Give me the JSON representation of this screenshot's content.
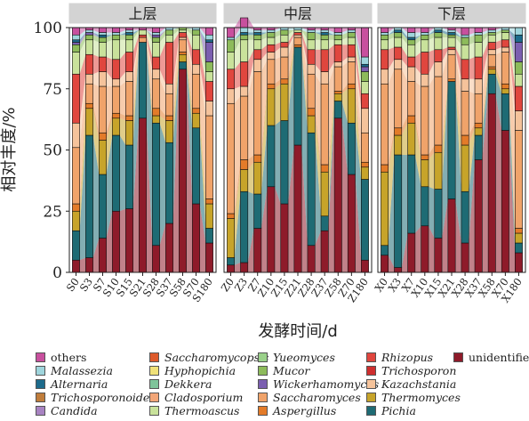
{
  "chart_data": {
    "type": "area",
    "ylabel": "相对丰度/%",
    "xlabel": "发酵时间/d",
    "ylim": [
      0,
      100
    ],
    "yticks": [
      0,
      25,
      50,
      75,
      100
    ],
    "panels": [
      {
        "title": "上层",
        "categories": [
          "S0",
          "S3",
          "S7",
          "S10",
          "S15",
          "S21",
          "S28",
          "S37",
          "S58",
          "S70",
          "S180"
        ]
      },
      {
        "title": "中层",
        "categories": [
          "Z0",
          "Z3",
          "Z7",
          "Z10",
          "Z15",
          "Z21",
          "Z28",
          "Z37",
          "Z58",
          "Z70",
          "Z180"
        ]
      },
      {
        "title": "下层",
        "categories": [
          "X0",
          "X3",
          "X7",
          "X10",
          "X15",
          "X21",
          "X28",
          "X37",
          "X58",
          "X70",
          "X180"
        ]
      }
    ],
    "series": [
      {
        "name": "unidentified",
        "color": "#8e1b2a",
        "values": [
          [
            5,
            6,
            14,
            25,
            26,
            63,
            11,
            20,
            83,
            28,
            12
          ],
          [
            3,
            4,
            18,
            35,
            28,
            52,
            11,
            17,
            63,
            40,
            5
          ],
          [
            7,
            2,
            16,
            19,
            14,
            30,
            12,
            46,
            73,
            58,
            8
          ]
        ]
      },
      {
        "name": "Pichia",
        "color": "#1e6b74",
        "values": [
          [
            12,
            50,
            26,
            31,
            26,
            31,
            50,
            33,
            3,
            31,
            6
          ],
          [
            3,
            29,
            14,
            25,
            34,
            40,
            46,
            6,
            7,
            21,
            33
          ],
          [
            4,
            46,
            32,
            16,
            20,
            48,
            21,
            10,
            8,
            15,
            4
          ]
        ]
      },
      {
        "name": "Thermomyces",
        "color": "#c7a42a",
        "values": [
          [
            8,
            11,
            14,
            7,
            10,
            0,
            3,
            9,
            3,
            6,
            10
          ],
          [
            16,
            9,
            13,
            15,
            15,
            0,
            7,
            18,
            3,
            14,
            5
          ],
          [
            30,
            8,
            13,
            11,
            15,
            0,
            19,
            3,
            2,
            2,
            4
          ]
        ]
      },
      {
        "name": "Aspergillus",
        "color": "#e37b29",
        "values": [
          [
            3,
            2,
            3,
            2,
            2,
            0,
            3,
            2,
            1,
            2,
            2
          ],
          [
            2,
            4,
            3,
            2,
            2,
            1,
            3,
            3,
            1,
            2,
            2
          ],
          [
            3,
            3,
            3,
            2,
            3,
            1,
            4,
            2,
            1,
            2,
            2
          ]
        ]
      },
      {
        "name": "Saccharomyces",
        "color": "#f0a36a",
        "values": [
          [
            23,
            8,
            19,
            11,
            14,
            2,
            12,
            9,
            5,
            14,
            34
          ],
          [
            45,
            26,
            34,
            10,
            9,
            3,
            14,
            33,
            10,
            9,
            12
          ],
          [
            33,
            24,
            14,
            28,
            28,
            10,
            18,
            12,
            5,
            13,
            40
          ]
        ]
      },
      {
        "name": "Kazachstania",
        "color": "#f5c39b",
        "values": [
          [
            10,
            4,
            6,
            3,
            4,
            0,
            4,
            4,
            1,
            4,
            6
          ],
          [
            6,
            4,
            5,
            3,
            4,
            1,
            4,
            5,
            2,
            2,
            10
          ],
          [
            6,
            4,
            6,
            5,
            6,
            2,
            5,
            6,
            2,
            2,
            8
          ]
        ]
      },
      {
        "name": "Rhizopus",
        "color": "#e0463e",
        "values": [
          [
            20,
            8,
            6,
            8,
            8,
            1,
            5,
            17,
            2,
            6,
            8
          ],
          [
            8,
            10,
            4,
            3,
            2,
            1,
            6,
            9,
            7,
            5,
            6
          ],
          [
            8,
            5,
            4,
            9,
            5,
            1,
            8,
            9,
            3,
            3,
            10
          ]
        ]
      },
      {
        "name": "Thermoascus",
        "color": "#c9e29b",
        "values": [
          [
            9,
            6,
            6,
            8,
            5,
            2,
            6,
            3,
            1,
            6,
            4
          ],
          [
            7,
            9,
            4,
            3,
            3,
            1,
            4,
            4,
            2,
            3,
            5
          ],
          [
            4,
            4,
            5,
            5,
            5,
            4,
            6,
            6,
            3,
            3,
            5
          ]
        ]
      },
      {
        "name": "Mucor",
        "color": "#8dbb5b",
        "values": [
          [
            3,
            2,
            2,
            2,
            2,
            0,
            2,
            2,
            1,
            2,
            4
          ],
          [
            5,
            2,
            2,
            2,
            2,
            0,
            3,
            2,
            2,
            2,
            4
          ],
          [
            2,
            2,
            2,
            2,
            2,
            1,
            3,
            3,
            1,
            1,
            5
          ]
        ]
      },
      {
        "name": "Wickerhamomyces",
        "color": "#7b5fb0",
        "values": [
          [
            1,
            1,
            0,
            0,
            0,
            0,
            1,
            0,
            0,
            0,
            8
          ],
          [
            0,
            0,
            0,
            0,
            0,
            0,
            0,
            0,
            0,
            0,
            2
          ],
          [
            0,
            0,
            0,
            0,
            0,
            0,
            0,
            0,
            0,
            0,
            8
          ]
        ]
      },
      {
        "name": "Alternaria",
        "color": "#1d6b8c",
        "values": [
          [
            1,
            0,
            1,
            0,
            1,
            0,
            0,
            0,
            0,
            0,
            1
          ],
          [
            0,
            1,
            1,
            0,
            0,
            0,
            0,
            1,
            0,
            0,
            1
          ],
          [
            0,
            1,
            1,
            0,
            1,
            1,
            0,
            0,
            0,
            0,
            3
          ]
        ]
      },
      {
        "name": "Malassezia",
        "color": "#9fd5dc",
        "values": [
          [
            2,
            1,
            1,
            1,
            1,
            0,
            1,
            1,
            0,
            1,
            2
          ],
          [
            1,
            2,
            1,
            1,
            1,
            1,
            1,
            1,
            1,
            1,
            3
          ],
          [
            1,
            1,
            2,
            1,
            1,
            1,
            1,
            1,
            1,
            1,
            3
          ]
        ]
      },
      {
        "name": "others",
        "color": "#c8509e",
        "values": [
          [
            3,
            1,
            2,
            2,
            1,
            1,
            2,
            0,
            0,
            0,
            3
          ],
          [
            4,
            4,
            1,
            1,
            0,
            0,
            1,
            1,
            2,
            1,
            12
          ],
          [
            2,
            0,
            2,
            2,
            0,
            1,
            3,
            2,
            1,
            0,
            0
          ]
        ]
      }
    ]
  },
  "legend": {
    "columns": [
      [
        {
          "label": "others",
          "color": "#c8509e",
          "italic": false
        },
        {
          "label": "Malassezia",
          "color": "#9fd5dc",
          "italic": true
        },
        {
          "label": "Alternaria",
          "color": "#1d6b8c",
          "italic": true
        },
        {
          "label": "Trichosporonoides",
          "color": "#c07d3b",
          "italic": true
        },
        {
          "label": "Candida",
          "color": "#a883c2",
          "italic": true
        }
      ],
      [
        {
          "label": "Saccharomycopsis",
          "color": "#dd5a2b",
          "italic": true
        },
        {
          "label": "Hyphopichia",
          "color": "#f0e179",
          "italic": true
        },
        {
          "label": "Dekkera",
          "color": "#7ec49a",
          "italic": true
        },
        {
          "label": "Cladosporium",
          "color": "#f2a678",
          "italic": true
        },
        {
          "label": "Thermoascus",
          "color": "#c9e29b",
          "italic": true
        }
      ],
      [
        {
          "label": "Yueomyces",
          "color": "#9ad18a",
          "italic": true
        },
        {
          "label": "Mucor",
          "color": "#8dbb5b",
          "italic": true
        },
        {
          "label": "Wickerhamomyces",
          "color": "#7b5fb0",
          "italic": true
        },
        {
          "label": "Saccharomyces",
          "color": "#f0a36a",
          "italic": true
        },
        {
          "label": "Aspergillus",
          "color": "#e37b29",
          "italic": true
        }
      ],
      [
        {
          "label": "Rhizopus",
          "color": "#e0463e",
          "italic": true
        },
        {
          "label": "Trichosporon",
          "color": "#cf2f2f",
          "italic": true
        },
        {
          "label": "Kazachstania",
          "color": "#f5c39b",
          "italic": true
        },
        {
          "label": "Thermomyces",
          "color": "#c7a42a",
          "italic": true
        },
        {
          "label": "Pichia",
          "color": "#1e6b74",
          "italic": true
        }
      ],
      [
        {
          "label": "unidentified",
          "color": "#8e1b2a",
          "italic": false
        }
      ]
    ]
  }
}
